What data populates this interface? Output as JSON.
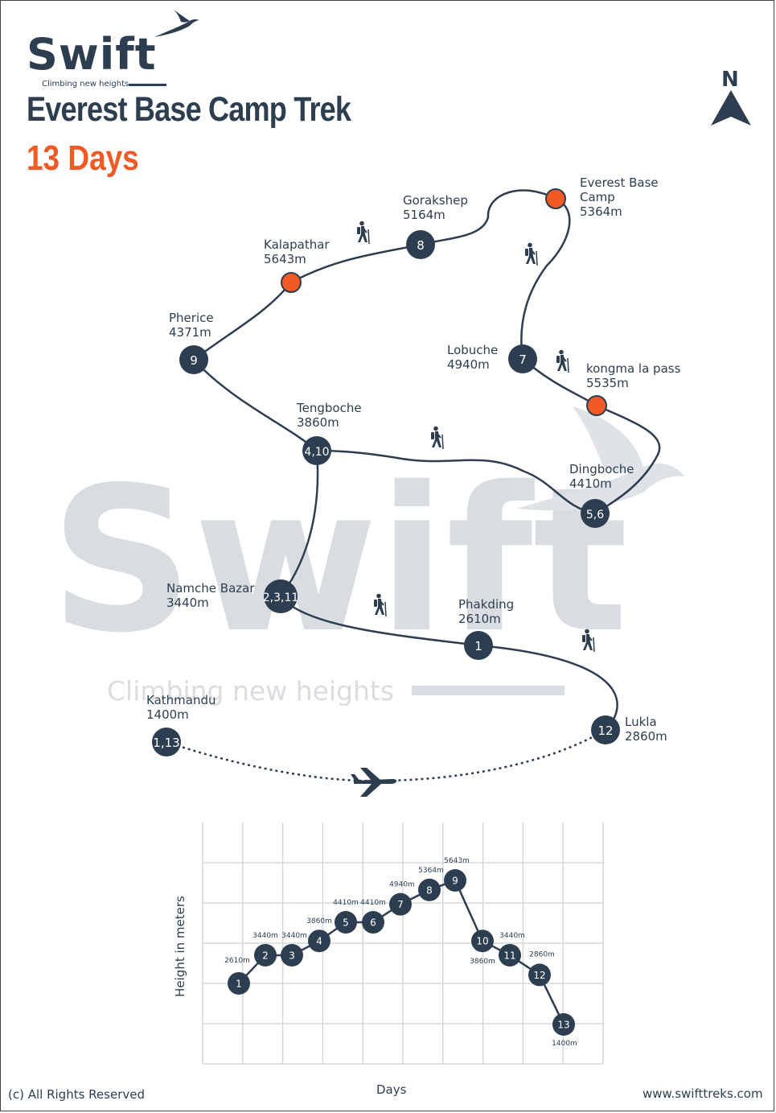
{
  "brand": {
    "name": "Swift",
    "tagline": "Climbing new heights"
  },
  "title": "Everest Base Camp Trek",
  "duration": "13 Days",
  "compass": {
    "label": "N",
    "icon": "north-arrow-icon"
  },
  "watermark": {
    "text": "Swift",
    "tagline": "Climbing new heights"
  },
  "colors": {
    "navy": "#2d3e50",
    "orange": "#f15a24",
    "watermark": "#d9dde1"
  },
  "stops": [
    {
      "id": "kathmandu",
      "name": "Kathmandu",
      "alt": "1400m",
      "marker": "1,13",
      "type": "day"
    },
    {
      "id": "lukla",
      "name": "Lukla",
      "alt": "2860m",
      "marker": "12",
      "type": "day"
    },
    {
      "id": "phakding",
      "name": "Phakding",
      "alt": "2610m",
      "marker": "1",
      "type": "day"
    },
    {
      "id": "namche",
      "name": "Namche Bazar",
      "alt": "3440m",
      "marker": "2,3,11",
      "type": "day"
    },
    {
      "id": "tengboche",
      "name": "Tengboche",
      "alt": "3860m",
      "marker": "4,10",
      "type": "day"
    },
    {
      "id": "dingboche",
      "name": "Dingboche",
      "alt": "4410m",
      "marker": "5,6",
      "type": "day"
    },
    {
      "id": "kongma",
      "name": "kongma la pass",
      "alt": "5535m",
      "marker": "",
      "type": "highlight"
    },
    {
      "id": "lobuche",
      "name": "Lobuche",
      "alt": "4940m",
      "marker": "7",
      "type": "day"
    },
    {
      "id": "ebc",
      "name": "Everest Base Camp",
      "alt": "5364m",
      "marker": "",
      "type": "highlight"
    },
    {
      "id": "gorakshep",
      "name": "Gorakshep",
      "alt": "5164m",
      "marker": "8",
      "type": "day"
    },
    {
      "id": "kalapathar",
      "name": "Kalapathar",
      "alt": "5643m",
      "marker": "",
      "type": "highlight"
    },
    {
      "id": "pherice",
      "name": "Pherice",
      "alt": "4371m",
      "marker": "9",
      "type": "day"
    }
  ],
  "icons": {
    "hiker": "hiker-icon",
    "plane": "airplane-icon",
    "bird": "swallow-icon"
  },
  "chart_data": {
    "type": "line",
    "title": "",
    "xlabel": "Days",
    "ylabel": "Height in meters",
    "grid": true,
    "ylim": [
      1000,
      6500
    ],
    "x": [
      1,
      2,
      3,
      4,
      5,
      6,
      7,
      8,
      9,
      10,
      11,
      12,
      13
    ],
    "values": [
      2610,
      3440,
      3440,
      3860,
      4410,
      4410,
      4940,
      5364,
      5643,
      3860,
      3440,
      2860,
      1400
    ],
    "point_labels": [
      "2610m",
      "3440m",
      "3440m",
      "3860m",
      "4410m",
      "4410m",
      "4940m",
      "5364m",
      "5643m",
      "3860m",
      "3440m",
      "2860m",
      "1400m"
    ],
    "markers": [
      "1",
      "2",
      "3",
      "4",
      "5",
      "6",
      "7",
      "8",
      "9",
      "10",
      "11",
      "12",
      "13"
    ]
  },
  "footer": {
    "copyright": "(c) All Rights Reserved",
    "website": "www.swifttreks.com"
  }
}
